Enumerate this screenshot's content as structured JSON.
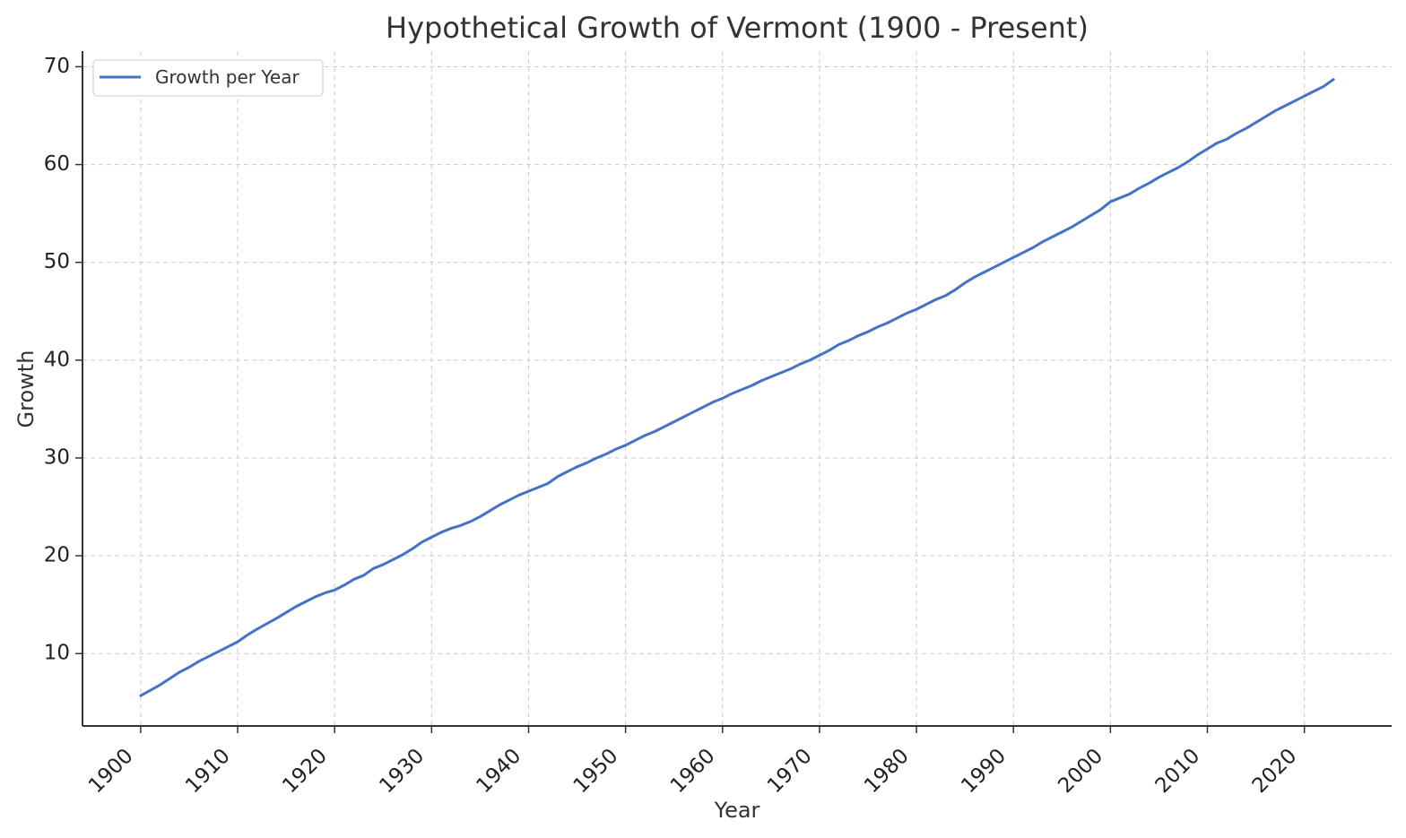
{
  "chart_data": {
    "type": "line",
    "title": "Hypothetical Growth of Vermont (1900 - Present)",
    "xlabel": "Year",
    "ylabel": "Growth",
    "xlim": [
      1894,
      2029
    ],
    "ylim": [
      2.6,
      71.6
    ],
    "x_ticks": [
      1900,
      1910,
      1920,
      1930,
      1940,
      1950,
      1960,
      1970,
      1980,
      1990,
      2000,
      2010,
      2020
    ],
    "x_tick_labels": [
      "1900",
      "1910",
      "1920",
      "1930",
      "1940",
      "1950",
      "1960",
      "1970",
      "1980",
      "1990",
      "2000",
      "2010",
      "2020"
    ],
    "y_ticks": [
      10,
      20,
      30,
      40,
      50,
      60,
      70
    ],
    "y_tick_labels": [
      "10",
      "20",
      "30",
      "40",
      "50",
      "60",
      "70"
    ],
    "grid": true,
    "legend": {
      "position": "top-left",
      "entries": [
        "Growth per Year"
      ]
    },
    "colors": {
      "series": "#4472c4",
      "grid": "#cccccc",
      "axis": "#333333",
      "text": "#333333"
    },
    "series": [
      {
        "name": "Growth per Year",
        "x": [
          1900,
          1902,
          1904,
          1905,
          1906,
          1908,
          1910,
          1911,
          1912,
          1914,
          1915,
          1916,
          1917,
          1918,
          1919,
          1920,
          1921,
          1922,
          1923,
          1924,
          1925,
          1926,
          1927,
          1928,
          1929,
          1930,
          1931,
          1932,
          1933,
          1934,
          1935,
          1936,
          1937,
          1938,
          1939,
          1940,
          1941,
          1942,
          1943,
          1944,
          1945,
          1946,
          1947,
          1948,
          1949,
          1950,
          1951,
          1952,
          1953,
          1954,
          1955,
          1956,
          1957,
          1958,
          1959,
          1960,
          1961,
          1962,
          1963,
          1964,
          1965,
          1966,
          1967,
          1968,
          1969,
          1970,
          1971,
          1972,
          1973,
          1974,
          1975,
          1976,
          1977,
          1978,
          1979,
          1980,
          1981,
          1982,
          1983,
          1984,
          1985,
          1986,
          1987,
          1988,
          1989,
          1990,
          1991,
          1992,
          1993,
          1994,
          1995,
          1996,
          1997,
          1998,
          1999,
          2000,
          2001,
          2002,
          2003,
          2004,
          2005,
          2006,
          2007,
          2008,
          2009,
          2010,
          2011,
          2012,
          2013,
          2014,
          2015,
          2016,
          2017,
          2018,
          2019,
          2020,
          2021,
          2022,
          2023
        ],
        "values": [
          5.7,
          6.8,
          8.1,
          8.6,
          9.2,
          10.2,
          11.2,
          11.9,
          12.5,
          13.6,
          14.2,
          14.8,
          15.3,
          15.8,
          16.2,
          16.5,
          17.0,
          17.6,
          18.0,
          18.7,
          19.1,
          19.6,
          20.1,
          20.7,
          21.4,
          21.9,
          22.4,
          22.8,
          23.1,
          23.5,
          24.0,
          24.6,
          25.2,
          25.7,
          26.2,
          26.6,
          27.0,
          27.4,
          28.1,
          28.6,
          29.1,
          29.5,
          30.0,
          30.4,
          30.9,
          31.3,
          31.8,
          32.3,
          32.7,
          33.2,
          33.7,
          34.2,
          34.7,
          35.2,
          35.7,
          36.1,
          36.6,
          37.0,
          37.4,
          37.9,
          38.3,
          38.7,
          39.1,
          39.6,
          40.0,
          40.5,
          41.0,
          41.6,
          42.0,
          42.5,
          42.9,
          43.4,
          43.8,
          44.3,
          44.8,
          45.2,
          45.7,
          46.2,
          46.6,
          47.2,
          47.9,
          48.5,
          49.0,
          49.5,
          50.0,
          50.5,
          51.0,
          51.5,
          52.1,
          52.6,
          53.1,
          53.6,
          54.2,
          54.8,
          55.4,
          56.2,
          56.6,
          57.0,
          57.6,
          58.1,
          58.7,
          59.2,
          59.7,
          60.3,
          61.0,
          61.6,
          62.2,
          62.6,
          63.2,
          63.7,
          64.3,
          64.9,
          65.5,
          66.0,
          66.5,
          67.0,
          67.5,
          68.0,
          68.7
        ]
      }
    ]
  }
}
